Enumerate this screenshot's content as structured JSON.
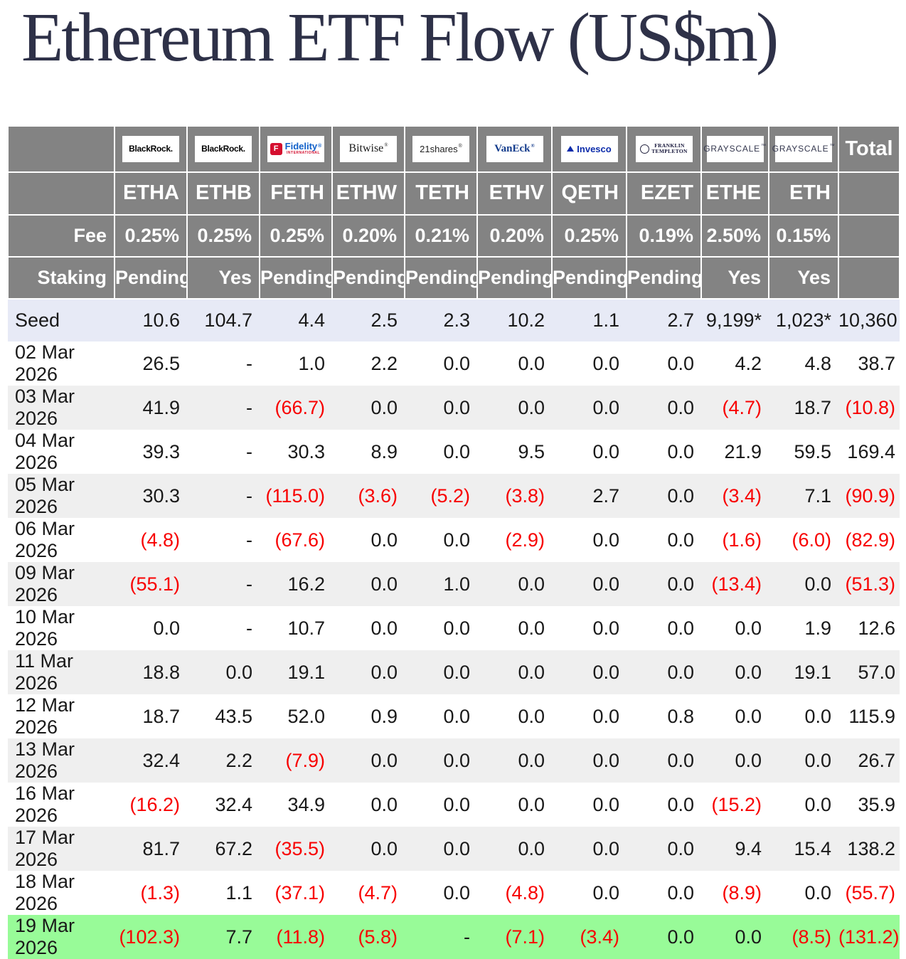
{
  "page": {
    "title": "Ethereum ETF Flow (US$m)"
  },
  "colors": {
    "header_bg": "#838383",
    "header_text": "#ffffff",
    "seed_row_bg": "#e7eaf6",
    "alt_row_bg": "#efefef",
    "highlight_row_bg": "#98fb98",
    "negative_value": "#f80000",
    "title_text": "#2e3148"
  },
  "chart_data": {
    "type": "table",
    "title": "Ethereum ETF Flow (US$m)",
    "header": {
      "fee_label": "Fee",
      "staking_label": "Staking",
      "total_label": "Total",
      "issuers": [
        {
          "brand": "BlackRock",
          "logo": "blackrock",
          "logo_text": "BlackRock.",
          "ticker": "ETHA",
          "fee": "0.25%",
          "staking": "Pending"
        },
        {
          "brand": "BlackRock",
          "logo": "blackrock",
          "logo_text": "BlackRock.",
          "ticker": "ETHB",
          "fee": "0.25%",
          "staking": "Yes"
        },
        {
          "brand": "Fidelity",
          "logo": "fidelity",
          "logo_text": "Fidelity",
          "logo_sub": "INTERNATIONAL",
          "logo_mark": "®",
          "ticker": "FETH",
          "fee": "0.25%",
          "staking": "Pending"
        },
        {
          "brand": "Bitwise",
          "logo": "bitwise",
          "logo_text": "Bitwise",
          "logo_mark": "®",
          "ticker": "ETHW",
          "fee": "0.20%",
          "staking": "Pending"
        },
        {
          "brand": "21shares",
          "logo": "twentyoneshares",
          "logo_text": "21shares",
          "logo_mark": "®",
          "ticker": "TETH",
          "fee": "0.21%",
          "staking": "Pending"
        },
        {
          "brand": "VanEck",
          "logo": "vaneck",
          "logo_text": "VanEck",
          "logo_mark": "®",
          "ticker": "ETHV",
          "fee": "0.20%",
          "staking": "Pending"
        },
        {
          "brand": "Invesco",
          "logo": "invesco",
          "logo_text": "Invesco",
          "ticker": "QETH",
          "fee": "0.25%",
          "staking": "Pending"
        },
        {
          "brand": "Franklin Templeton",
          "logo": "franklin",
          "logo_line1": "FRANKLIN",
          "logo_line2": "TEMPLETON",
          "ticker": "EZET",
          "fee": "0.19%",
          "staking": "Pending"
        },
        {
          "brand": "Grayscale",
          "logo": "grayscale",
          "logo_text": "GRAYSCALE",
          "logo_mark": "™",
          "ticker": "ETHE",
          "fee": "2.50%",
          "staking": "Yes"
        },
        {
          "brand": "Grayscale",
          "logo": "grayscale",
          "logo_text": "GRAYSCALE",
          "logo_mark": "™",
          "ticker": "ETH",
          "fee": "0.15%",
          "staking": "Yes"
        }
      ]
    },
    "rows": [
      {
        "label": "Seed",
        "style": "seed",
        "values": [
          "10.6",
          "104.7",
          "4.4",
          "2.5",
          "2.3",
          "10.2",
          "1.1",
          "2.7",
          "9,199*",
          "1,023*"
        ],
        "total": "10,360"
      },
      {
        "label": "02 Mar 2026",
        "style": "white",
        "values": [
          "26.5",
          "-",
          "1.0",
          "2.2",
          "0.0",
          "0.0",
          "0.0",
          "0.0",
          "4.2",
          "4.8"
        ],
        "total": "38.7"
      },
      {
        "label": "03 Mar 2026",
        "style": "alt",
        "values": [
          "41.9",
          "-",
          "(66.7)",
          "0.0",
          "0.0",
          "0.0",
          "0.0",
          "0.0",
          "(4.7)",
          "18.7"
        ],
        "total": "(10.8)"
      },
      {
        "label": "04 Mar 2026",
        "style": "white",
        "values": [
          "39.3",
          "-",
          "30.3",
          "8.9",
          "0.0",
          "9.5",
          "0.0",
          "0.0",
          "21.9",
          "59.5"
        ],
        "total": "169.4"
      },
      {
        "label": "05 Mar 2026",
        "style": "alt",
        "values": [
          "30.3",
          "-",
          "(115.0)",
          "(3.6)",
          "(5.2)",
          "(3.8)",
          "2.7",
          "0.0",
          "(3.4)",
          "7.1"
        ],
        "total": "(90.9)"
      },
      {
        "label": "06 Mar 2026",
        "style": "white",
        "values": [
          "(4.8)",
          "-",
          "(67.6)",
          "0.0",
          "0.0",
          "(2.9)",
          "0.0",
          "0.0",
          "(1.6)",
          "(6.0)"
        ],
        "total": "(82.9)"
      },
      {
        "label": "09 Mar 2026",
        "style": "alt",
        "values": [
          "(55.1)",
          "-",
          "16.2",
          "0.0",
          "1.0",
          "0.0",
          "0.0",
          "0.0",
          "(13.4)",
          "0.0"
        ],
        "total": "(51.3)"
      },
      {
        "label": "10 Mar 2026",
        "style": "white",
        "values": [
          "0.0",
          "-",
          "10.7",
          "0.0",
          "0.0",
          "0.0",
          "0.0",
          "0.0",
          "0.0",
          "1.9"
        ],
        "total": "12.6"
      },
      {
        "label": "11 Mar 2026",
        "style": "alt",
        "values": [
          "18.8",
          "0.0",
          "19.1",
          "0.0",
          "0.0",
          "0.0",
          "0.0",
          "0.0",
          "0.0",
          "19.1"
        ],
        "total": "57.0"
      },
      {
        "label": "12 Mar 2026",
        "style": "white",
        "values": [
          "18.7",
          "43.5",
          "52.0",
          "0.9",
          "0.0",
          "0.0",
          "0.0",
          "0.8",
          "0.0",
          "0.0"
        ],
        "total": "115.9"
      },
      {
        "label": "13 Mar 2026",
        "style": "alt",
        "values": [
          "32.4",
          "2.2",
          "(7.9)",
          "0.0",
          "0.0",
          "0.0",
          "0.0",
          "0.0",
          "0.0",
          "0.0"
        ],
        "total": "26.7"
      },
      {
        "label": "16 Mar 2026",
        "style": "white",
        "values": [
          "(16.2)",
          "32.4",
          "34.9",
          "0.0",
          "0.0",
          "0.0",
          "0.0",
          "0.0",
          "(15.2)",
          "0.0"
        ],
        "total": "35.9"
      },
      {
        "label": "17 Mar 2026",
        "style": "alt",
        "values": [
          "81.7",
          "67.2",
          "(35.5)",
          "0.0",
          "0.0",
          "0.0",
          "0.0",
          "0.0",
          "9.4",
          "15.4"
        ],
        "total": "138.2"
      },
      {
        "label": "18 Mar 2026",
        "style": "white",
        "values": [
          "(1.3)",
          "1.1",
          "(37.1)",
          "(4.7)",
          "0.0",
          "(4.8)",
          "0.0",
          "0.0",
          "(8.9)",
          "0.0"
        ],
        "total": "(55.7)"
      },
      {
        "label": "19 Mar 2026",
        "style": "highlight",
        "values": [
          "(102.3)",
          "7.7",
          "(11.8)",
          "(5.8)",
          "-",
          "(7.1)",
          "(3.4)",
          "0.0",
          "0.0",
          "(8.5)"
        ],
        "total": "(131.2)"
      }
    ]
  }
}
